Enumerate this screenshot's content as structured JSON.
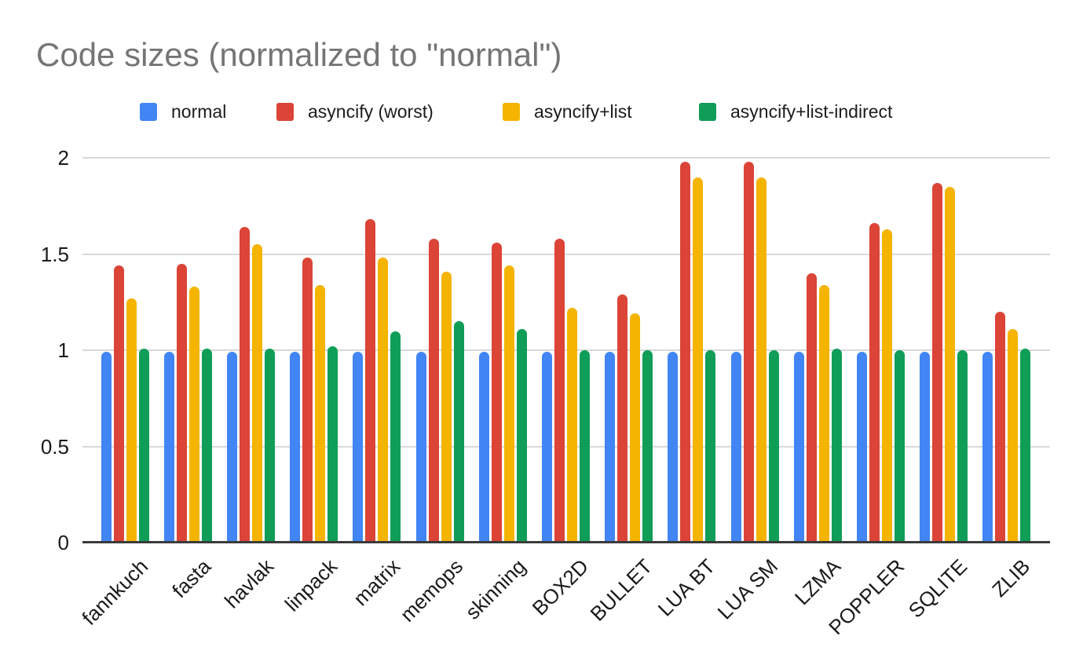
{
  "chart_data": {
    "type": "bar",
    "title": "Code sizes (normalized to \"normal\")",
    "categories": [
      "fannkuch",
      "fasta",
      "havlak",
      "linpack",
      "matrix",
      "memops",
      "skinning",
      "BOX2D",
      "BULLET",
      "LUA BT",
      "LUA SM",
      "LZMA",
      "POPPLER",
      "SQLITE",
      "ZLIB"
    ],
    "series": [
      {
        "name": "normal",
        "color": "#4285F4",
        "values": [
          0.99,
          0.99,
          0.99,
          0.99,
          0.99,
          0.99,
          0.99,
          0.99,
          0.99,
          0.99,
          0.99,
          0.99,
          0.99,
          0.99,
          0.99
        ]
      },
      {
        "name": "asyncify (worst)",
        "color": "#DB4437",
        "values": [
          1.44,
          1.45,
          1.64,
          1.48,
          1.68,
          1.58,
          1.56,
          1.58,
          1.29,
          1.98,
          1.98,
          1.4,
          1.66,
          1.87,
          1.2
        ]
      },
      {
        "name": "asyncify+list",
        "color": "#F4B400",
        "values": [
          1.27,
          1.33,
          1.55,
          1.34,
          1.48,
          1.41,
          1.44,
          1.22,
          1.19,
          1.9,
          1.9,
          1.34,
          1.63,
          1.85,
          1.11
        ]
      },
      {
        "name": "asyncify+list-indirect",
        "color": "#0F9D58",
        "values": [
          1.01,
          1.01,
          1.01,
          1.02,
          1.1,
          1.15,
          1.11,
          1.0,
          1.0,
          1.0,
          1.0,
          1.01,
          1.0,
          1.0,
          1.01
        ]
      }
    ],
    "ylim": [
      0,
      2
    ],
    "yticks": [
      0,
      0.5,
      1,
      1.5,
      2
    ],
    "grid": true,
    "legend_position": "top",
    "xlabel": "",
    "ylabel": "",
    "background_color": "#ffffff",
    "gridline_color": "#d9d9d9",
    "axis_line_color": "#3b3b3b",
    "title_color": "#757575",
    "label_color": "#1a1a1a"
  }
}
